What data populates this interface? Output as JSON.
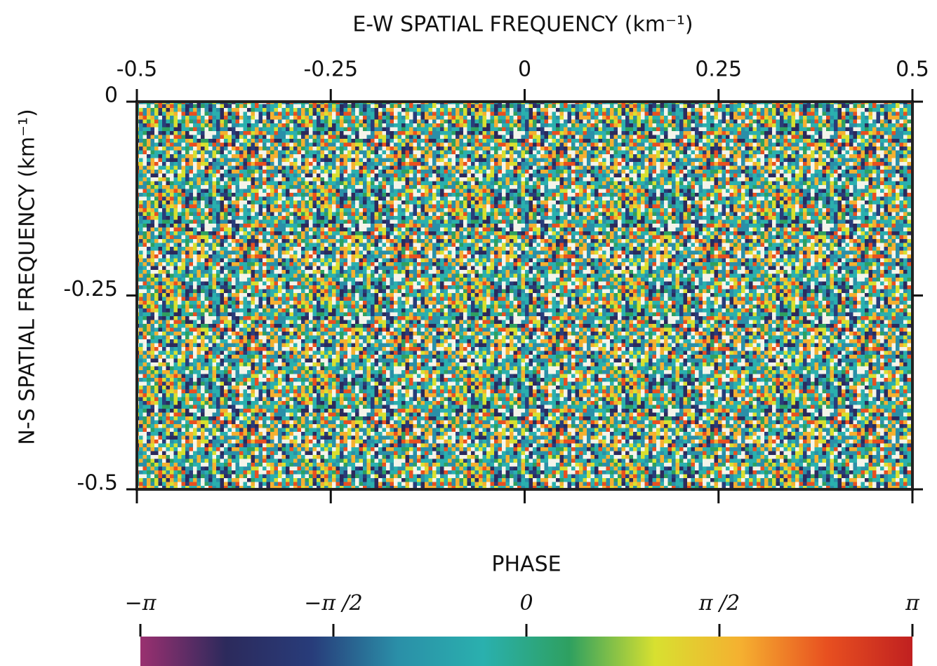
{
  "chart_data": {
    "type": "heatmap",
    "title": "E-W SPATIAL FREQUENCY (km⁻¹)",
    "y_label": "N-S SPATIAL FREQUENCY (km⁻¹)",
    "xlim": [
      -0.5,
      0.5
    ],
    "xticks": [
      -0.5,
      -0.25,
      0,
      0.25,
      0.5
    ],
    "ylim": [
      -0.5,
      0
    ],
    "yticks": [
      0,
      -0.25,
      -0.5
    ],
    "colorbar": {
      "title": "PHASE",
      "lim": [
        -3.14159,
        3.14159
      ],
      "ticks": [
        {
          "value": -3.14159,
          "label": "−π"
        },
        {
          "value": -1.5708,
          "label": "−π /2"
        },
        {
          "value": 0,
          "label": "0"
        },
        {
          "value": 1.5708,
          "label": "π /2"
        },
        {
          "value": 3.14159,
          "label": "π"
        }
      ],
      "colormap": [
        "#9a3070",
        "#2c2a5c",
        "#283c7a",
        "#2a8fa8",
        "#2ab0ae",
        "#2ea060",
        "#d8e030",
        "#f5b030",
        "#e85020",
        "#c02020"
      ]
    }
  }
}
